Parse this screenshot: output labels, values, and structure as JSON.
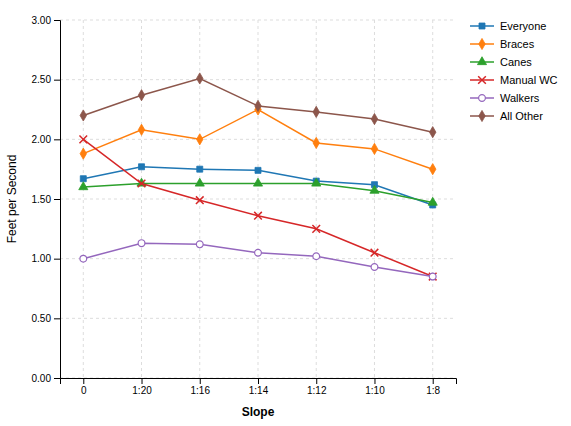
{
  "chart_data": {
    "type": "line",
    "xlabel": "Slope",
    "ylabel": "Feet per Second",
    "categories": [
      "0",
      "1:20",
      "1:16",
      "1:14",
      "1:12",
      "1:10",
      "1:8"
    ],
    "series": [
      {
        "name": "Everyone",
        "marker": "square",
        "values": [
          1.67,
          1.77,
          1.75,
          1.74,
          1.65,
          1.62,
          1.45
        ]
      },
      {
        "name": "Braces",
        "marker": "diamond",
        "values": [
          1.88,
          2.08,
          2.0,
          2.25,
          1.97,
          1.92,
          1.75
        ]
      },
      {
        "name": "Canes",
        "marker": "triangle",
        "values": [
          1.6,
          1.63,
          1.63,
          1.63,
          1.63,
          1.57,
          1.47
        ]
      },
      {
        "name": "Manual WC",
        "marker": "x",
        "values": [
          2.0,
          1.63,
          1.49,
          1.36,
          1.25,
          1.05,
          0.85
        ]
      },
      {
        "name": "Walkers",
        "marker": "circle-open",
        "values": [
          1.0,
          1.13,
          1.12,
          1.05,
          1.02,
          0.93,
          0.85
        ]
      },
      {
        "name": "All Other",
        "marker": "diamond",
        "values": [
          2.2,
          2.37,
          2.51,
          2.28,
          2.23,
          2.17,
          2.06
        ]
      }
    ],
    "ylim": [
      0.0,
      3.0
    ],
    "yticks": [
      {
        "value": 0.0,
        "label": "0.00"
      },
      {
        "value": 0.5,
        "label": "0.50"
      },
      {
        "value": 1.0,
        "label": "1.00"
      },
      {
        "value": 1.5,
        "label": "1.50"
      },
      {
        "value": 2.0,
        "label": "2.00"
      },
      {
        "value": 2.5,
        "label": "2.50"
      },
      {
        "value": 3.0,
        "label": "3.00"
      }
    ],
    "grid": true,
    "legend": "right"
  }
}
